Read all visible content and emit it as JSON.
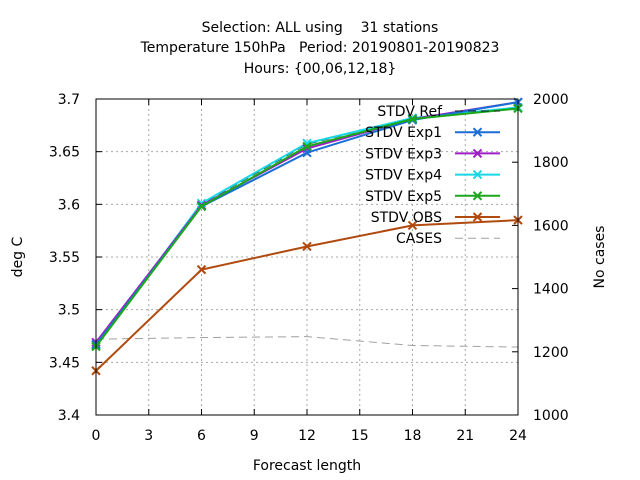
{
  "title_lines": [
    "Selection: ALL using    31 stations",
    "Temperature 150hPa   Period: 20190801-20190823",
    "Hours: {00,06,12,18}"
  ],
  "chart_data": {
    "type": "line",
    "xlabel": "Forecast length",
    "ylabel": "deg C",
    "y2label": "No cases",
    "xlim": [
      0,
      24
    ],
    "ylim": [
      3.4,
      3.7
    ],
    "y2lim": [
      1000,
      2000
    ],
    "x_ticks": [
      "0",
      "3",
      "6",
      "9",
      "12",
      "15",
      "18",
      "21",
      "24"
    ],
    "y_ticks": [
      "3.4",
      "3.45",
      "3.5",
      "3.55",
      "3.6",
      "3.65",
      "3.7"
    ],
    "y2_ticks": [
      "1000",
      "1200",
      "1400",
      "1600",
      "1800",
      "2000"
    ],
    "grid": true,
    "legend_position": "top-right inside",
    "x": [
      0,
      6,
      12,
      18,
      24
    ],
    "series": [
      {
        "name": "STDV Ref",
        "color": "#1a1a1a",
        "dashed": true,
        "axis": "y",
        "values": [
          3.467,
          3.6,
          3.657,
          3.682,
          3.692
        ]
      },
      {
        "name": "STDV Exp1",
        "color": "#1a6fd6",
        "dashed": false,
        "axis": "y",
        "values": [
          3.467,
          3.598,
          3.649,
          3.68,
          3.697
        ]
      },
      {
        "name": "STDV Exp3",
        "color": "#a020c8",
        "dashed": false,
        "axis": "y",
        "values": [
          3.469,
          3.599,
          3.653,
          3.681,
          3.697
        ]
      },
      {
        "name": "STDV Exp4",
        "color": "#18d8e8",
        "dashed": false,
        "axis": "y",
        "values": [
          3.466,
          3.601,
          3.658,
          3.682,
          3.692
        ]
      },
      {
        "name": "STDV Exp5",
        "color": "#1aa81a",
        "dashed": false,
        "axis": "y",
        "values": [
          3.465,
          3.598,
          3.655,
          3.681,
          3.691
        ]
      },
      {
        "name": "STDV OBS",
        "color": "#b04a0e",
        "dashed": false,
        "axis": "y",
        "values": [
          3.442,
          3.538,
          3.56,
          3.58,
          3.585
        ]
      },
      {
        "name": "CASES",
        "color": "#a0a0a0",
        "dashed": true,
        "axis": "y2",
        "values": [
          1240,
          1245,
          1248,
          1220,
          1215
        ]
      }
    ]
  }
}
